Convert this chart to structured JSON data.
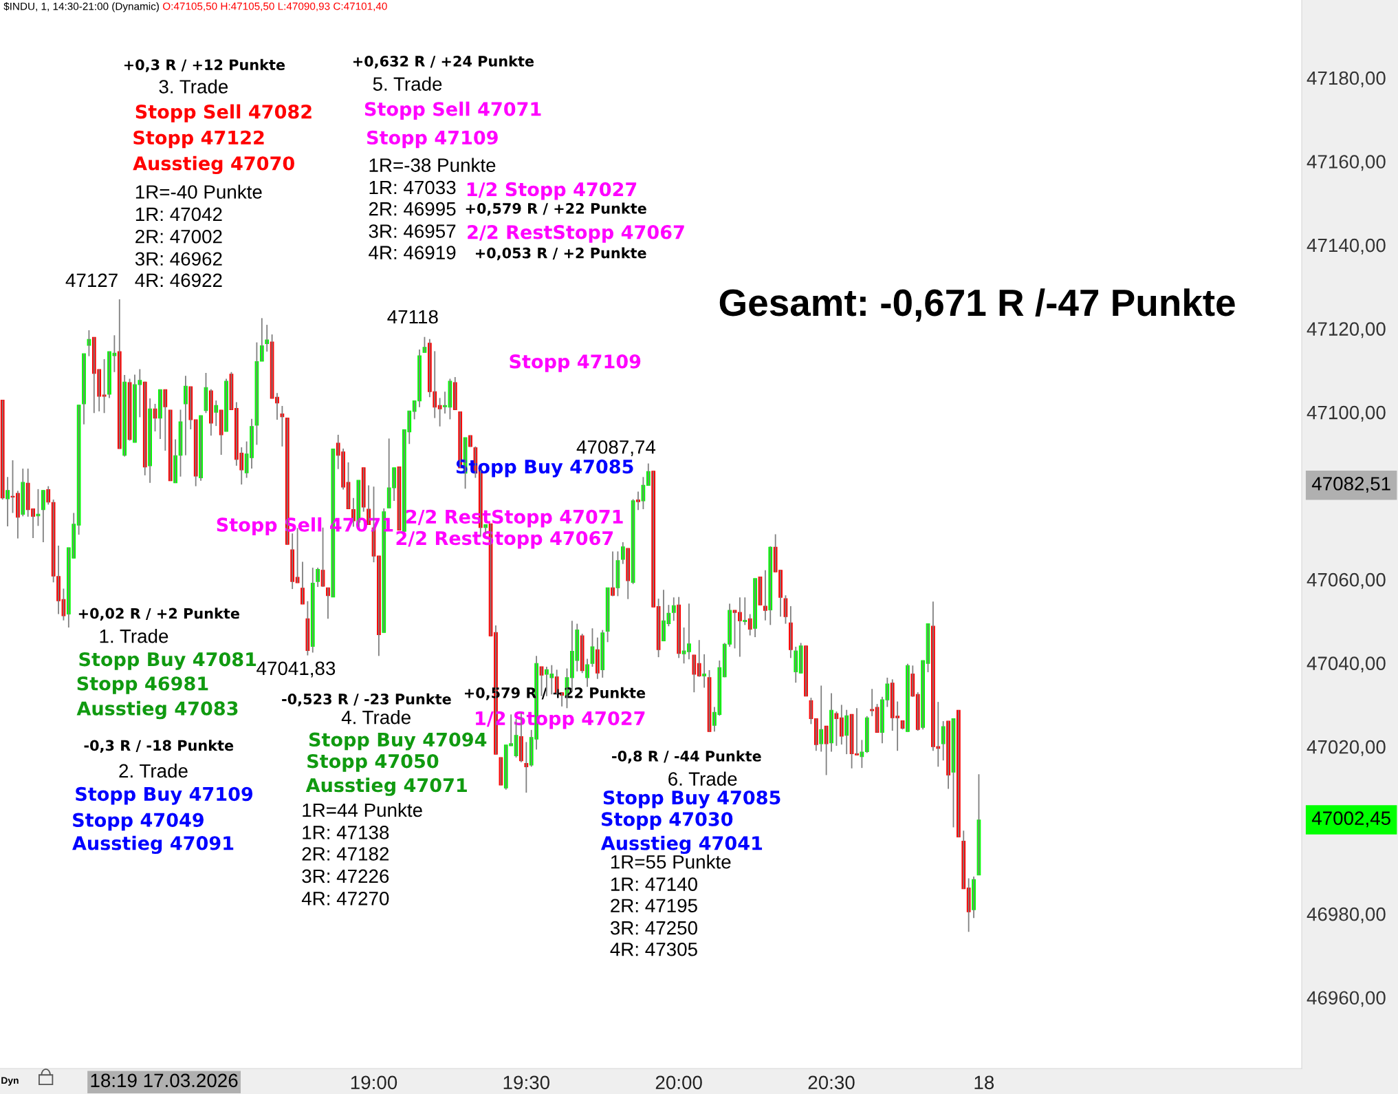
{
  "chart_data": {
    "type": "candlestick",
    "title": "$INDU, 1, 14:30-21:00 (Dynamic)",
    "subtitle": "O:47105,50 H:47105,50 L:47090,93 C:47101,40",
    "categories": [
      null,
      null,
      null,
      null,
      null,
      null,
      null,
      null,
      null,
      null,
      null,
      null,
      null,
      null,
      null,
      null,
      null,
      null,
      null,
      null,
      null,
      null,
      null,
      null,
      null,
      null,
      null,
      null,
      null,
      null,
      null,
      null,
      null,
      null,
      null,
      null,
      null,
      null,
      null,
      null,
      null,
      null,
      null,
      null,
      null,
      null,
      null,
      null,
      null,
      null,
      null,
      null,
      null,
      null,
      null,
      null,
      null,
      null,
      null,
      null,
      null,
      null,
      null,
      null,
      null,
      null,
      null,
      null,
      null,
      null,
      null,
      null,
      null,
      "19:00",
      null,
      null,
      null,
      null,
      null,
      null,
      null,
      null,
      null,
      null,
      null,
      null,
      null,
      null,
      null,
      null,
      null,
      null,
      null,
      null,
      null,
      null,
      null,
      null,
      null,
      null,
      null,
      null,
      null,
      "19:30",
      null,
      null,
      null,
      null,
      null,
      null,
      null,
      null,
      null,
      null,
      null,
      null,
      null,
      null,
      null,
      null,
      null,
      null,
      null,
      null,
      null,
      null,
      null,
      null,
      null,
      null,
      null,
      null,
      null,
      "20:00",
      null,
      null,
      null,
      null,
      null,
      null,
      null,
      null,
      null,
      null,
      null,
      null,
      null,
      null,
      null,
      null,
      null,
      null,
      null,
      null,
      null,
      null,
      null,
      null,
      null,
      null,
      null,
      null,
      null,
      "20:30",
      null,
      null,
      null,
      null,
      null,
      null,
      null,
      null,
      null,
      null,
      null,
      null,
      null,
      null,
      null,
      null,
      null,
      null,
      null,
      null,
      null,
      null,
      null,
      null,
      null,
      null,
      null,
      null,
      null,
      "18",
      null,
      null,
      null,
      null,
      null,
      null,
      null,
      null,
      null,
      null,
      null,
      null,
      null,
      null,
      null,
      null,
      null,
      null,
      null,
      null,
      null,
      null,
      null,
      null,
      null,
      null,
      null,
      null,
      null,
      null,
      null,
      null,
      null,
      null,
      null,
      null,
      null,
      null,
      null,
      null,
      null,
      null,
      null,
      null,
      null,
      null,
      null,
      null,
      null,
      null,
      null,
      null,
      null,
      null,
      null,
      null,
      null,
      null,
      null,
      null,
      null,
      null
    ],
    "ohlc": [
      [
        47102.9,
        47102.9,
        47079.1,
        47079.5
      ],
      [
        47079.3,
        47084.5,
        47072.7,
        47081.3
      ],
      [
        47079.9,
        47088.5,
        47075.9,
        47079.7
      ],
      [
        47080.6,
        47081.2,
        47069.8,
        47074.9
      ],
      [
        47075.6,
        47086.5,
        47075.1,
        47083.2
      ],
      [
        47083.0,
        47086.5,
        47075.0,
        47076.7
      ],
      [
        47076.9,
        47076.9,
        47069.9,
        47075.1
      ],
      [
        47075.2,
        47081.6,
        47072.8,
        47075.6
      ],
      [
        47076.7,
        47081.3,
        47068.9,
        47081.3
      ],
      [
        47081.5,
        47082.3,
        47077.9,
        47078.5
      ],
      [
        47078.4,
        47079.1,
        47059.3,
        47060.8
      ],
      [
        47060.7,
        47068.1,
        47051.7,
        47054.9
      ],
      [
        47055.2,
        47057.8,
        47050.2,
        47051.3
      ],
      [
        47051.7,
        47067.6,
        47048.5,
        47067.6
      ],
      [
        47065.1,
        47075.9,
        47065.1,
        47073.2
      ],
      [
        47073.0,
        47101.7,
        47070.7,
        47101.7
      ],
      [
        47102.0,
        47114.0,
        47097.1,
        47114.0
      ],
      [
        47116.0,
        47119.6,
        47113.4,
        47117.4
      ],
      [
        47117.9,
        47117.9,
        47099.8,
        47109.3
      ],
      [
        47110.2,
        47110.2,
        47100.2,
        47103.8
      ],
      [
        47104.1,
        47112.7,
        47099.8,
        47103.8
      ],
      [
        47104.3,
        47114.5,
        47103.4,
        47114.5
      ],
      [
        47113.5,
        47118.4,
        47109.6,
        47114.1
      ],
      [
        47114.5,
        47127,
        47091.3,
        47091.3
      ],
      [
        47089.7,
        47108.9,
        47089.4,
        47107.2
      ],
      [
        47107.1,
        47108.0,
        47093.2,
        47093.5
      ],
      [
        47092.8,
        47109.0,
        47092.8,
        47106.6
      ],
      [
        47106.6,
        47110.3,
        47098.8,
        47107.6
      ],
      [
        47107.2,
        47107.3,
        47084.9,
        47086.9
      ],
      [
        47087.2,
        47103.3,
        47083.1,
        47100.8
      ],
      [
        47100.8,
        47102.0,
        47095.4,
        47098.6
      ],
      [
        47098.6,
        47105.4,
        47093.6,
        47105.4
      ],
      [
        47105.4,
        47105.4,
        47090.8,
        47101.3
      ],
      [
        47100.5,
        47100.5,
        47083.6,
        47083.6
      ],
      [
        47083.1,
        47093.5,
        47083.1,
        47089.6
      ],
      [
        47089.7,
        47100.6,
        47084.6,
        47097.7
      ],
      [
        47102.0,
        47108.7,
        47089.7,
        47106.2
      ],
      [
        47106.1,
        47106.1,
        47095.9,
        47098.2
      ],
      [
        47098.2,
        47098.2,
        47082.3,
        47084.7
      ],
      [
        47084.3,
        47099.2,
        47083.6,
        47099.2
      ],
      [
        47100.4,
        47109.4,
        47099.8,
        47105.9
      ],
      [
        47105.1,
        47105.5,
        47094.4,
        47097.4
      ],
      [
        47100.0,
        47102.8,
        47096.7,
        47101.6
      ],
      [
        47100.5,
        47100.5,
        47089.8,
        47094.6
      ],
      [
        47095.4,
        47108.0,
        47095.4,
        47107.4
      ],
      [
        47109.1,
        47109.6,
        47100.6,
        47100.6
      ],
      [
        47100.9,
        47102.4,
        47087.2,
        47088.7
      ],
      [
        47090.2,
        47091.6,
        47082.7,
        47086.2
      ],
      [
        47085.5,
        47093.0,
        47084.3,
        47090.0
      ],
      [
        47089.1,
        47098.4,
        47086.5,
        47096.6
      ],
      [
        47096.9,
        47116.7,
        47092.2,
        47112.1
      ],
      [
        47112.2,
        47122.5,
        47112.2,
        47115.9
      ],
      [
        47116.4,
        47120.9,
        47114.5,
        47117.3
      ],
      [
        47116.8,
        47118.6,
        47103.3,
        47103.3
      ],
      [
        47103.6,
        47104.6,
        47098.2,
        47102.2
      ],
      [
        47099.6,
        47101.5,
        47091.8,
        47098.9
      ],
      [
        47098.6,
        47098.6,
        47068.4,
        47068.4
      ],
      [
        47067.1,
        47071.0,
        47057.7,
        47059.5
      ],
      [
        47060.5,
        47072.3,
        47059.2,
        47059.2
      ],
      [
        47057.9,
        47064.2,
        47054.1,
        47054.1
      ],
      [
        47050.6,
        47054.8,
        47041.83,
        47043.0
      ],
      [
        47044.0,
        47062.8,
        47042.5,
        47059.1
      ],
      [
        47059.5,
        47062.8,
        47058.2,
        47062.4
      ],
      [
        47062.2,
        47072.4,
        47058.2,
        47058.4
      ],
      [
        47058.0,
        47058.0,
        47050.6,
        47056.1
      ],
      [
        47055.8,
        47091.2,
        47055.8,
        47091.2
      ],
      [
        47092.6,
        47094.6,
        47086.4,
        47089.7
      ],
      [
        47090.5,
        47091.3,
        47081.5,
        47082.1
      ],
      [
        47083.2,
        47088.0,
        47076.9,
        47076.9
      ],
      [
        47076.7,
        47079.5,
        47072.6,
        47074.0
      ],
      [
        47073.7,
        47083.7,
        47072.6,
        47083.7
      ],
      [
        47086.7,
        47086.7,
        47076.2,
        47077.3
      ],
      [
        47076.8,
        47082.5,
        47073.1,
        47073.1
      ],
      [
        47072.3,
        47082.2,
        47064.1,
        47065.6
      ],
      [
        47065.6,
        47065.6,
        47041.7,
        47046.8
      ],
      [
        47047.3,
        47077.0,
        47047.3,
        47076.2
      ],
      [
        47077.1,
        47093.7,
        47077.1,
        47081.9
      ],
      [
        47081.9,
        47086.7,
        47078.8,
        47086.7
      ],
      [
        47086.9,
        47086.9,
        47071.8,
        47071.8
      ],
      [
        47071.5,
        47095.8,
        47071.5,
        47095.8
      ],
      [
        47095.3,
        47100.3,
        47092.4,
        47100.3
      ],
      [
        47100.2,
        47102.7,
        47098.3,
        47102.7
      ],
      [
        47102.7,
        47115.0,
        47101.2,
        47113.5
      ],
      [
        47114.3,
        47118,
        47114.3,
        47115.5
      ],
      [
        47116.5,
        47117.5,
        47103.6,
        47104.9
      ],
      [
        47104.9,
        47114.6,
        47098.6,
        47101.2
      ],
      [
        47101.6,
        47103.4,
        47096.6,
        47100.8
      ],
      [
        47101.3,
        47104.9,
        47099.7,
        47101.6
      ],
      [
        47101.2,
        47108.0,
        47098.3,
        47107.4
      ],
      [
        47107.1,
        47108.4,
        47100.6,
        47100.6
      ],
      [
        47100.1,
        47100.1,
        47086.7,
        47086.7
      ],
      [
        47085.4,
        47093.9,
        47081.7,
        47093.9
      ],
      [
        47094.4,
        47094.4,
        47091.8,
        47091.8
      ],
      [
        47091.5,
        47091.8,
        47084.3,
        47085.4
      ],
      [
        47086.1,
        47086.1,
        47070.3,
        47072.4
      ],
      [
        47072.4,
        47073.1,
        47071.1,
        47073.1
      ],
      [
        47073.3,
        47073.3,
        47046.5,
        47046.5
      ],
      [
        47047.3,
        47049.0,
        47018.2,
        47018.2
      ],
      [
        47017.4,
        47017.4,
        47010.8,
        47010.8
      ],
      [
        47010.1,
        47020.4,
        47009.7,
        47020.4
      ],
      [
        47020.2,
        47027.7,
        47020.2,
        47020.7
      ],
      [
        47017.8,
        47026.6,
        47017.4,
        47022.7
      ],
      [
        47022.4,
        47028.1,
        47016.3,
        47016.6
      ],
      [
        47016.0,
        47021.1,
        47009.0,
        47015.2
      ],
      [
        47015.6,
        47024.0,
        47015.2,
        47022.2
      ],
      [
        47021.8,
        47041.7,
        47019.3,
        47039.9
      ],
      [
        47039.1,
        47039.1,
        47032.1,
        47037.1
      ],
      [
        47037.3,
        47039.1,
        47032.1,
        47038.4
      ],
      [
        47036.5,
        47039.5,
        47032.5,
        47037.4
      ],
      [
        47036.7,
        47038.4,
        47032.5,
        47032.9
      ],
      [
        47032.9,
        47032.9,
        47029.6,
        47032.3
      ],
      [
        47032.1,
        47038.7,
        47029.2,
        47036.5
      ],
      [
        47036.5,
        47050.1,
        47033.2,
        47042.8
      ],
      [
        47040.6,
        47049.4,
        47038.0,
        47047.9
      ],
      [
        47046.5,
        47047.0,
        47037.6,
        47038.2
      ],
      [
        47036.5,
        47041.0,
        47034.3,
        47039.6
      ],
      [
        47039.9,
        47048.3,
        47039.1,
        47043.9
      ],
      [
        47043.2,
        47046.1,
        47036.2,
        47037.6
      ],
      [
        47038.4,
        47047.9,
        47036.5,
        47047.2
      ],
      [
        47047.6,
        47058.0,
        47045.0,
        47058.0
      ],
      [
        47058.0,
        47066.7,
        47056.0,
        47056.2
      ],
      [
        47058.0,
        47066.7,
        47056.0,
        47064.5
      ],
      [
        47064.8,
        47068.9,
        47063.7,
        47067.8
      ],
      [
        47067.4,
        47067.4,
        47055.3,
        47059.7
      ],
      [
        47059.3,
        47079.2,
        47058.9,
        47078.8
      ],
      [
        47079.0,
        47081.0,
        47076.6,
        47078.6
      ],
      [
        47078.8,
        47084.5,
        47076.8,
        47082.5
      ],
      [
        47082.5,
        47087.74,
        47082.5,
        47085.8
      ],
      [
        47085.9,
        47085.9,
        47053.4,
        47053.4
      ],
      [
        47053.5,
        47055.4,
        47041.4,
        47043.2
      ],
      [
        47045.3,
        47057.5,
        47045.3,
        47050.1
      ],
      [
        47049.4,
        47053.9,
        47048.8,
        47051.9
      ],
      [
        47052.1,
        47055.7,
        47050.1,
        47053.7
      ],
      [
        47053.9,
        47055.8,
        47041.2,
        47042.3
      ],
      [
        47042.2,
        47048.5,
        47039.9,
        47042.9
      ],
      [
        47042.7,
        47054.2,
        47040.9,
        47044.6
      ],
      [
        47041.9,
        47041.9,
        47033.0,
        47037.3
      ],
      [
        47039.9,
        47045.5,
        47036.7,
        47036.9
      ],
      [
        47036.9,
        47042.1,
        47034.1,
        47037.4
      ],
      [
        47036.5,
        47038.3,
        47023.6,
        47023.6
      ],
      [
        47025.1,
        47029.5,
        47023.6,
        47028.2
      ],
      [
        47027.7,
        47040.6,
        47027.4,
        47038.9
      ],
      [
        47036.7,
        47044.8,
        47036.6,
        47044.5
      ],
      [
        47044.5,
        47054.2,
        47043.9,
        47052.6
      ],
      [
        47052.6,
        47052.6,
        47043.5,
        47052.1
      ],
      [
        47052.1,
        47055.7,
        47041.5,
        47050.1
      ],
      [
        47049.9,
        47055.7,
        47049.1,
        47050.2
      ],
      [
        47050.6,
        47051.7,
        47046.6,
        47048.1
      ],
      [
        47048.3,
        47060.2,
        47046.2,
        47060.2
      ],
      [
        47060.6,
        47060.6,
        47053.9,
        47053.9
      ],
      [
        47053.6,
        47062.2,
        47050.2,
        47052.6
      ],
      [
        47052.7,
        47067.9,
        47049.1,
        47067.7
      ],
      [
        47067.7,
        47070.8,
        47061.8,
        47061.8
      ],
      [
        47062.2,
        47062.2,
        47051.1,
        47055.7
      ],
      [
        47055.4,
        47056.2,
        47049.4,
        47051.1
      ],
      [
        47049.6,
        47053.6,
        47041.2,
        47043.2
      ],
      [
        47037.9,
        47043.9,
        47035.3,
        47042.9
      ],
      [
        47037.6,
        47044.8,
        47037.6,
        47044.1
      ],
      [
        47044.1,
        47044.1,
        47032.1,
        47032.1
      ],
      [
        47031.0,
        47031.7,
        47025.4,
        47026.7
      ],
      [
        47026.7,
        47026.7,
        47019.0,
        47020.5
      ],
      [
        47020.7,
        47034.6,
        47018.8,
        47024.1
      ],
      [
        47024.9,
        47024.9,
        47013.2,
        47020.7
      ],
      [
        47020.9,
        47032.8,
        47018.8,
        47028.7
      ],
      [
        47027.9,
        47028.4,
        47020.2,
        47026.7
      ],
      [
        47026.9,
        47030.0,
        47020.5,
        47022.5
      ],
      [
        47022.7,
        47028.8,
        47018.2,
        47027.4
      ],
      [
        47027.7,
        47027.7,
        47014.8,
        47018.3
      ],
      [
        47018.3,
        47029.2,
        47018.0,
        47018.0
      ],
      [
        47017.6,
        47021.6,
        47014.9,
        47018.7
      ],
      [
        47018.8,
        47027.3,
        47018.5,
        47026.9
      ],
      [
        47028.9,
        47033.8,
        47027.3,
        47028.6
      ],
      [
        47029.4,
        47030.2,
        47023.4,
        47023.4
      ],
      [
        47023.4,
        47031.9,
        47020.8,
        47031.2
      ],
      [
        47031.2,
        47036.5,
        47029.5,
        47035.0
      ],
      [
        47035.2,
        47036.1,
        47023.8,
        47026.9
      ],
      [
        47027.3,
        47030.8,
        47019.0,
        47026.9
      ],
      [
        47026.2,
        47026.2,
        47024.1,
        47024.4
      ],
      [
        47023.6,
        47039.8,
        47023.6,
        47039.4
      ],
      [
        47037.4,
        47039.4,
        47031.9,
        47032.1
      ],
      [
        47032.5,
        47033.0,
        47023.8,
        47024.1
      ],
      [
        47024.6,
        47040.6,
        47024.1,
        47040.6
      ],
      [
        47039.9,
        47049.4,
        47037.8,
        47049.4
      ],
      [
        47048.8,
        47054.7,
        47019.0,
        47020.0
      ],
      [
        47020.0,
        47030.7,
        47015.2,
        47019.6
      ],
      [
        47020.7,
        47026.1,
        47016.7,
        47024.8
      ],
      [
        47026.1,
        47026.1,
        47009.9,
        47013.2
      ],
      [
        47013.9,
        47026.7,
        47000.7,
        47026.7
      ],
      [
        47028.7,
        47028.7,
        46998.4,
        46998.4
      ],
      [
        46997.4,
        46999.9,
        46986.0,
        46986.0
      ],
      [
        46986.2,
        46988.5,
        46975.7,
        46980.5
      ],
      [
        46981.0,
        46988.9,
        46979.0,
        46988.2
      ],
      [
        46989.3,
        47013.4,
        46989.3,
        47002.45
      ],
      null,
      null,
      null,
      null,
      null,
      null,
      null,
      null,
      null,
      null,
      null,
      null,
      null,
      null,
      null,
      null,
      null,
      null,
      null,
      null,
      null,
      null,
      null,
      null,
      null,
      null,
      null,
      null,
      null,
      null,
      null,
      null,
      null,
      null,
      null,
      null,
      null,
      null,
      null,
      null,
      null,
      null,
      null,
      null,
      null,
      null,
      null,
      null,
      null,
      null,
      null,
      null,
      null,
      null,
      null,
      null,
      null,
      null,
      null,
      null,
      null,
      null,
      null
    ],
    "colors": [
      "#ff0000",
      "#00ff00",
      "#ff0000",
      "#ff0000",
      "#00ff00",
      "#ff0000",
      "#ff0000",
      "#00ff00",
      "#00ff00",
      "#ff0000",
      "#ff0000",
      "#ff0000",
      "#ff0000",
      "#00ff00",
      "#00ff00",
      "#00ff00",
      "#00ff00",
      "#00ff00",
      "#ff0000",
      "#ff0000",
      "#ff0000",
      "#00ff00",
      "#00ff00",
      "#ff0000",
      "#00ff00",
      "#ff0000",
      "#00ff00",
      "#00ff00",
      "#ff0000",
      "#00ff00",
      "#ff0000",
      "#00ff00",
      "#ff0000",
      "#ff0000",
      "#00ff00",
      "#00ff00",
      "#00ff00",
      "#ff0000",
      "#ff0000",
      "#00ff00",
      "#00ff00",
      "#ff0000",
      "#00ff00",
      "#ff0000",
      "#00ff00",
      "#ff0000",
      "#ff0000",
      "#ff0000",
      "#00ff00",
      "#00ff00",
      "#00ff00",
      "#00ff00",
      "#00ff00",
      "#ff0000",
      "#ff0000",
      "#ff0000",
      "#ff0000",
      "#ff0000",
      "#ff0000",
      "#ff0000",
      "#ff0000",
      "#00ff00",
      "#00ff00",
      "#ff0000",
      "#ff0000",
      "#00ff00",
      "#ff0000",
      "#ff0000",
      "#ff0000",
      "#ff0000",
      "#00ff00",
      "#ff0000",
      "#ff0000",
      "#ff0000",
      "#ff0000",
      "#00ff00",
      "#00ff00",
      "#00ff00",
      "#ff0000",
      "#00ff00",
      "#00ff00",
      "#00ff00",
      "#00ff00",
      "#00ff00",
      "#ff0000",
      "#ff0000",
      "#ff0000",
      "#00ff00",
      "#00ff00",
      "#ff0000",
      "#ff0000",
      "#00ff00",
      "#ff0000",
      "#ff0000",
      "#ff0000",
      "#00ff00",
      "#ff0000",
      "#ff0000",
      "#ff0000",
      "#00ff00",
      "#00ff00",
      "#00ff00",
      "#ff0000",
      "#ff0000",
      "#00ff00",
      "#00ff00",
      "#ff0000",
      "#00ff00",
      "#00ff00",
      "#ff0000",
      "#ff0000",
      "#00ff00",
      "#00ff00",
      "#00ff00",
      "#ff0000",
      "#00ff00",
      "#00ff00",
      "#ff0000",
      "#00ff00",
      "#00ff00",
      "#ff0000",
      "#00ff00",
      "#00ff00",
      "#ff0000",
      "#00ff00",
      "#ff0000",
      "#00ff00",
      "#00ff00",
      "#ff0000",
      "#ff0000",
      "#00ff00",
      "#00ff00",
      "#00ff00",
      "#ff0000",
      "#00ff00",
      "#00ff00",
      "#ff0000",
      "#ff0000",
      "#00ff00",
      "#ff0000",
      "#00ff00",
      "#00ff00",
      "#00ff00",
      "#00ff00",
      "#ff0000",
      "#ff0000",
      "#00ff00",
      "#ff0000",
      "#00ff00",
      "#ff0000",
      "#ff0000",
      "#00ff00",
      "#ff0000",
      "#ff0000",
      "#ff0000",
      "#ff0000",
      "#00ff00",
      "#00ff00",
      "#ff0000",
      "#ff0000",
      "#ff0000",
      "#00ff00",
      "#ff0000",
      "#00ff00",
      "#ff0000",
      "#ff0000",
      "#00ff00",
      "#ff0000",
      "#ff0000",
      "#00ff00",
      "#00ff00",
      "#ff0000",
      "#ff0000",
      "#00ff00",
      "#00ff00",
      "#ff0000",
      "#ff0000",
      "#ff0000",
      "#00ff00",
      "#ff0000",
      "#ff0000",
      "#00ff00",
      "#00ff00",
      "#ff0000",
      "#ff0000",
      "#00ff00",
      "#ff0000",
      "#00ff00",
      "#ff0000",
      "#ff0000",
      "#ff0000",
      "#00ff00",
      "#00ff00",
      null,
      null,
      null,
      null,
      null,
      null,
      null,
      null,
      null,
      null,
      null,
      null,
      null,
      null,
      null,
      null,
      null,
      null,
      null,
      null,
      null,
      null,
      null,
      null,
      null,
      null,
      null,
      null,
      null,
      null,
      null,
      null,
      null,
      null,
      null,
      null,
      null,
      null,
      null,
      null,
      null,
      null,
      null,
      null,
      null,
      null,
      null,
      null,
      null,
      null,
      null,
      null,
      null,
      null,
      null,
      null,
      null,
      null,
      null,
      null,
      null,
      null,
      null
    ],
    "ylim": [
      46943,
      47198.6
    ],
    "yticks": [
      {
        "value": 46960,
        "label": "46960,00"
      },
      {
        "value": 46980,
        "label": "46980,00"
      },
      {
        "value": 47020,
        "label": "47020,00"
      },
      {
        "value": 47040,
        "label": "47040,00"
      },
      {
        "value": 47060,
        "label": "47060,00"
      },
      {
        "value": 47100,
        "label": "47100,00"
      },
      {
        "value": 47120,
        "label": "47120,00"
      },
      {
        "value": 47140,
        "label": "47140,00"
      },
      {
        "value": 47160,
        "label": "47160,00"
      },
      {
        "value": 47180,
        "label": "47180,00"
      }
    ],
    "annotations": [
      "+0,3 R / +12 Punkte",
      "3. Trade",
      "Stopp Sell 47082",
      "Stopp 47122",
      "Ausstieg 47070",
      "1R=-40 Punkte",
      "1R: 47042",
      "2R: 47002",
      "3R: 46962",
      "4R: 46922",
      "47127",
      "+0,632 R / +24 Punkte",
      "5. Trade",
      "Stopp Sell 47071",
      "Stopp 47109",
      "1R=-38 Punkte",
      "1R: 47033",
      "1/2 Stopp 47027",
      "2R: 46995",
      "+0,579 R / +22 Punkte",
      "3R: 46957",
      "2/2 RestStopp 47067",
      "4R: 46919",
      "+0,053 R / +2 Punkte",
      "Gesamt: -0,671 R /-47 Punkte",
      "47118",
      "Stopp 47109",
      "47087,74",
      "Stopp Buy 47085",
      "2/2 RestStopp 47071",
      "Stopp Sell 47071",
      "2/2 RestStopp 47067",
      "+0,02 R / +2 Punkte",
      "1. Trade",
      "Stopp Buy 47081",
      "47041,83",
      "Stopp 46981",
      "Ausstieg 47083",
      "-0,3 R / -18 Punkte",
      "2. Trade",
      "Stopp Buy 47109",
      "Stopp 47049",
      "Ausstieg 47091",
      "-0,523 R / -23 Punkte",
      "4. Trade",
      "Stopp Buy 47094",
      "Stopp 47050",
      "Ausstieg 47071",
      "1R=44 Punkte",
      "1R: 47138",
      "2R: 47182",
      "3R: 47226",
      "4R: 47270",
      "+0,579 R / +22 Punkte",
      "1/2 Stopp 47027",
      "-0,8 R / -44 Punkte",
      "6. Trade",
      "Stopp Buy 47085",
      "Stopp 47030",
      "Ausstieg 47041",
      "1R=55 Punkte",
      "1R: 47140",
      "2R: 47195",
      "3R: 47250",
      "4R: 47305",
      "Dyn",
      "47082,51",
      "47002,45",
      "18:19 17.03.2026"
    ]
  }
}
